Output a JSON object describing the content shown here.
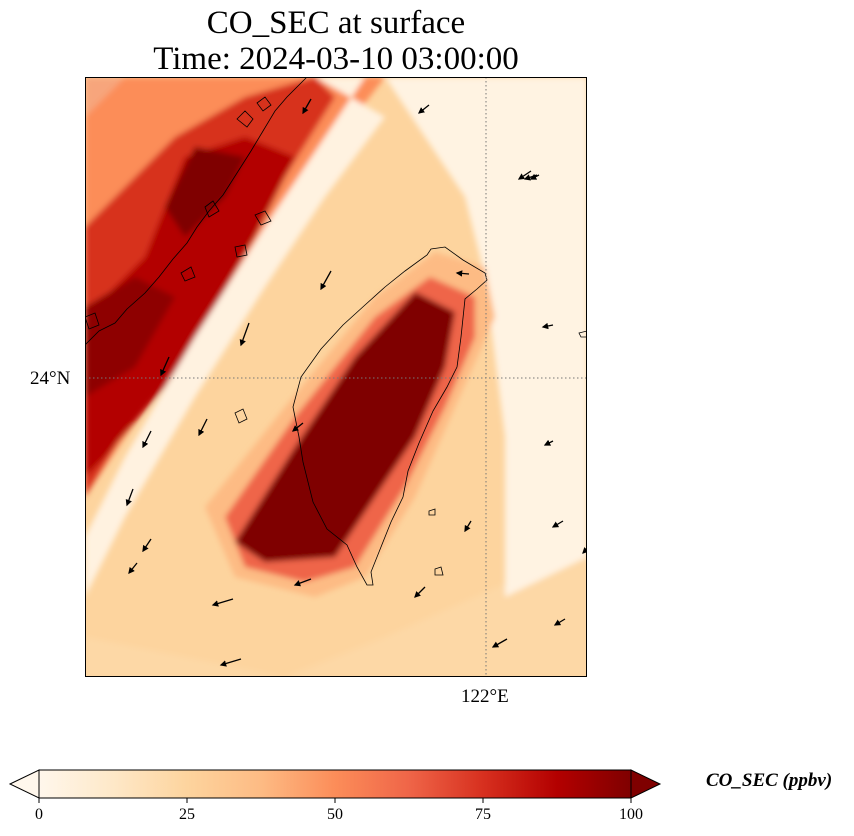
{
  "figure": {
    "title_line1": "CO_SEC at surface",
    "title_line2": "Time: 2024-03-10 03:00:00"
  },
  "map": {
    "lat_tick_label": "24°N",
    "lon_tick_label": "122°E",
    "lat_range_deg": [
      21.6,
      26.4
    ],
    "lon_range_deg": [
      118.8,
      122.8
    ],
    "gridline_lat": 24,
    "gridline_lon": 122,
    "gridline_style": "dotted gray"
  },
  "field": {
    "variable": "CO_SEC",
    "units": "ppbv",
    "level": "surface",
    "features": [
      "Narrow high-concentration band (>75 ppbv) along the China coast in the northwest corner",
      "Broad plume (saturated at 100 ppbv) over western and central Taiwan, oriented SW–NE",
      "Low values (<10 ppbv) in the channel between the two bands and east of Taiwan"
    ]
  },
  "wind_vectors": {
    "shown": true,
    "description": "black arrows, mostly from the northeast"
  },
  "colorbar": {
    "label": "CO_SEC (ppbv)",
    "colormap": "OrRd",
    "colors": [
      "#fff7ec",
      "#fee8c8",
      "#fdd49e",
      "#fdbb84",
      "#fc8d59",
      "#ef6548",
      "#d7301f",
      "#b30000",
      "#7f0000"
    ],
    "min": 0,
    "max": 100,
    "extend": "both",
    "ticks": [
      {
        "value": 0,
        "label": "0"
      },
      {
        "value": 25,
        "label": "25"
      },
      {
        "value": 50,
        "label": "50"
      },
      {
        "value": 75,
        "label": "75"
      },
      {
        "value": 100,
        "label": "100"
      }
    ]
  }
}
